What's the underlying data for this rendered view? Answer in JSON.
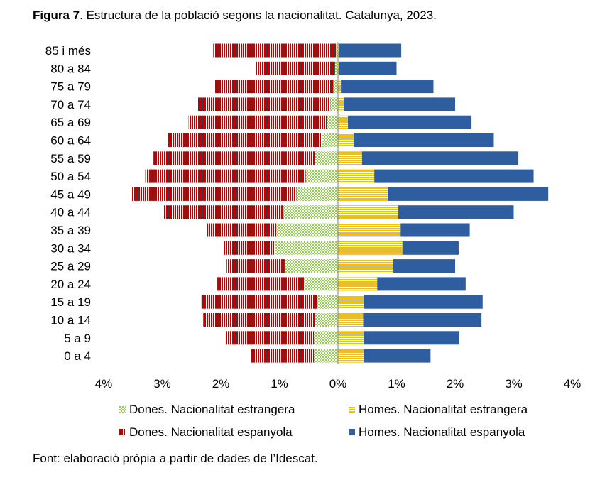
{
  "figure": {
    "label": "Figura 7",
    "title": ". Estructura de la població segons la nacionalitat. Catalunya, 2023.",
    "source": "Font: elaboració pròpia a partir de dades de l’Idescat."
  },
  "chart_data": {
    "type": "bar",
    "orientation": "horizontal",
    "subtype": "population-pyramid",
    "categories": [
      "85 i més",
      "80 a 84",
      "75 a 79",
      "70 a 74",
      "65 a 69",
      "60 a 64",
      "55 a 59",
      "50 a 54",
      "45 a 49",
      "40 a 44",
      "35 a 39",
      "30 a 34",
      "25 a 29",
      "20 a 24",
      "15 a 19",
      "10 a 14",
      "5 a 9",
      "0 a 4"
    ],
    "series": [
      {
        "name": "Dones. Nacionalitat estrangera",
        "side": "left",
        "color": "#92d050",
        "values": [
          0.03,
          0.05,
          0.08,
          0.13,
          0.19,
          0.27,
          0.39,
          0.55,
          0.71,
          0.93,
          1.05,
          1.08,
          0.91,
          0.58,
          0.35,
          0.39,
          0.41,
          0.41
        ]
      },
      {
        "name": "Dones. Nacionalitat espanyola",
        "side": "left",
        "color": "#c00000",
        "values": [
          2.1,
          1.35,
          2.02,
          2.27,
          2.36,
          2.63,
          2.76,
          2.74,
          2.81,
          2.05,
          1.19,
          0.86,
          0.99,
          1.48,
          1.98,
          1.91,
          1.51,
          1.07
        ]
      },
      {
        "name": "Homes. Nacionalitat estrangera",
        "side": "right",
        "color": "#f5c000",
        "values": [
          0.02,
          0.02,
          0.05,
          0.1,
          0.17,
          0.27,
          0.41,
          0.62,
          0.85,
          1.03,
          1.07,
          1.1,
          0.94,
          0.67,
          0.44,
          0.43,
          0.44,
          0.44
        ]
      },
      {
        "name": "Homes. Nacionalitat espanyola",
        "side": "right",
        "color": "#2e5ea0",
        "values": [
          1.06,
          0.98,
          1.58,
          1.9,
          2.11,
          2.39,
          2.67,
          2.72,
          2.74,
          1.97,
          1.18,
          0.96,
          1.06,
          1.51,
          2.03,
          2.02,
          1.63,
          1.14
        ]
      }
    ],
    "xticks": [
      "4%",
      "3%",
      "2%",
      "1%",
      "0%",
      "1%",
      "2%",
      "3%",
      "4%"
    ],
    "xlim": [
      -4,
      4
    ],
    "legend": {
      "position": "bottom",
      "items": [
        "Dones. Nacionalitat estrangera",
        "Homes. Nacionalitat estrangera",
        "Dones. Nacionalitat espanyola",
        "Homes. Nacionalitat espanyola"
      ]
    }
  }
}
